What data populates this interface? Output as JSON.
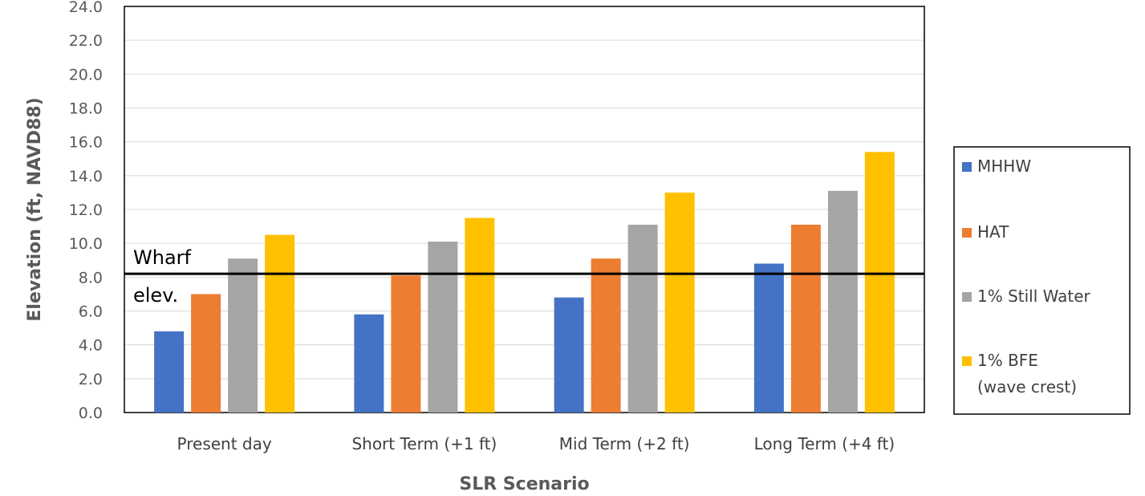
{
  "chart_data": {
    "type": "bar",
    "title": "",
    "xlabel": "SLR Scenario",
    "ylabel": "Elevation (ft, NAVD88)",
    "ylim": [
      0,
      24
    ],
    "ytick_step": 2,
    "ytick_labels": [
      "0.0",
      "2.0",
      "4.0",
      "6.0",
      "8.0",
      "10.0",
      "12.0",
      "14.0",
      "16.0",
      "18.0",
      "20.0",
      "22.0",
      "24.0"
    ],
    "grid": true,
    "legend_position": "right",
    "categories": [
      "Present day",
      "Short Term (+1 ft)",
      "Mid Term (+2 ft)",
      "Long Term (+4 ft)"
    ],
    "series": [
      {
        "name": "MHHW",
        "color": "#4472C4",
        "values": [
          4.8,
          5.8,
          6.8,
          8.8
        ]
      },
      {
        "name": "HAT",
        "color": "#ED7D31",
        "values": [
          7.0,
          8.1,
          9.1,
          11.1
        ]
      },
      {
        "name": "1% Still Water",
        "color": "#A5A5A5",
        "values": [
          9.1,
          10.1,
          11.1,
          13.1
        ]
      },
      {
        "name": "1% BFE (wave crest)",
        "legend_lines": [
          "1% BFE",
          "(wave crest)"
        ],
        "color": "#FFC000",
        "values": [
          10.5,
          11.5,
          13.0,
          15.4
        ]
      }
    ],
    "reference_line": {
      "value": 8.2,
      "label_top": "Wharf",
      "label_bottom": "elev."
    }
  }
}
